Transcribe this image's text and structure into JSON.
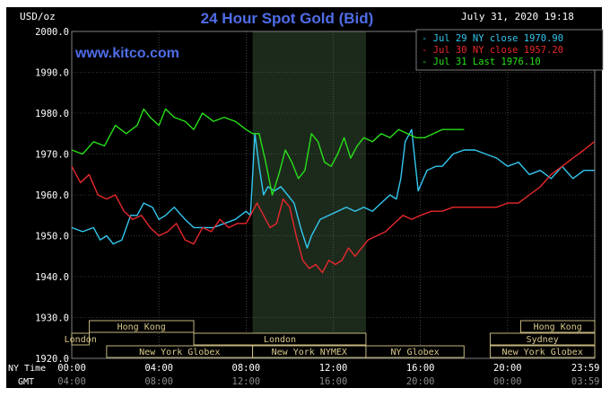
{
  "chart_data": {
    "type": "line",
    "title": "24 Hour Spot Gold (Bid)",
    "date": "July 31, 2020 19:18",
    "watermark": "www.kitco.com",
    "unit_label": "USD/oz",
    "ylim": [
      1920,
      2000
    ],
    "yticks": [
      "2000.0",
      "1990.0",
      "1980.0",
      "1970.0",
      "1960.0",
      "1950.0",
      "1940.0",
      "1930.0",
      "1920.0"
    ],
    "ytick_values": [
      2000,
      1990,
      1980,
      1970,
      1960,
      1950,
      1940,
      1930,
      1920
    ],
    "xlim_hours": [
      0,
      24
    ],
    "row_labels": {
      "ny": "NY Time",
      "gmt": "GMT"
    },
    "ny_ticks": [
      "00:00",
      "04:00",
      "08:00",
      "12:00",
      "16:00",
      "20:00",
      "23:59"
    ],
    "gmt_ticks": [
      "04:00",
      "08:00",
      "12:00",
      "16:00",
      "20:00",
      "00:00",
      "03:59"
    ],
    "tick_hours": [
      0,
      4,
      8,
      12,
      16,
      20,
      23.98
    ],
    "highlight_hours": [
      8.3,
      13.5
    ],
    "legend_position": "top-right",
    "sessions": [
      {
        "label": "Hong Kong",
        "row": 0,
        "start": 0.8,
        "end": 5.6
      },
      {
        "label": "Hong Kong",
        "row": 0,
        "start": 20.6,
        "end": 24
      },
      {
        "label": "London",
        "row": 1,
        "start": 0,
        "end": 0.8
      },
      {
        "label": "London",
        "row": 1,
        "start": 5.6,
        "end": 13.5
      },
      {
        "label": "Sydney",
        "row": 1,
        "start": 19.2,
        "end": 24
      },
      {
        "label": "New York Globex",
        "row": 2,
        "start": 1.6,
        "end": 8.3
      },
      {
        "label": "New York NYMEX",
        "row": 2,
        "start": 8.3,
        "end": 13.5
      },
      {
        "label": "NY Globex",
        "row": 2,
        "start": 13.5,
        "end": 18
      },
      {
        "label": "New York Globex",
        "row": 2,
        "start": 19.2,
        "end": 24
      }
    ],
    "series": [
      {
        "name": "Jul 29 NY close 1970.90",
        "color": "#33c8f0",
        "x": [
          0,
          0.5,
          1,
          1.3,
          1.6,
          1.9,
          2.3,
          2.7,
          3.0,
          3.3,
          3.7,
          4.0,
          4.3,
          4.7,
          5.2,
          5.6,
          6.0,
          6.5,
          7.0,
          7.5,
          8.0,
          8.2,
          8.4,
          8.6,
          8.8,
          9.0,
          9.3,
          9.6,
          9.9,
          10.2,
          10.5,
          10.8,
          11.0,
          11.4,
          11.8,
          12.2,
          12.6,
          13.0,
          13.4,
          13.8,
          14.2,
          14.6,
          14.9,
          15.1,
          15.3,
          15.6,
          15.9,
          16.3,
          16.7,
          17.0,
          17.5,
          18.0,
          18.5,
          19.0,
          19.5,
          20.0,
          20.5,
          21.0,
          21.5,
          22.0,
          22.5,
          23.0,
          23.5,
          23.98
        ],
        "y": [
          1952,
          1951,
          1952,
          1949,
          1950,
          1948,
          1949,
          1955,
          1955,
          1958,
          1957,
          1954,
          1955,
          1957,
          1954,
          1952,
          1952,
          1952,
          1953,
          1954,
          1956,
          1955,
          1975,
          1967,
          1960,
          1962,
          1961,
          1962,
          1960,
          1958,
          1952,
          1947,
          1950,
          1954,
          1955,
          1956,
          1957,
          1956,
          1957,
          1956,
          1958,
          1960,
          1959,
          1964,
          1973,
          1976,
          1961,
          1966,
          1967,
          1967,
          1970,
          1971,
          1971,
          1970,
          1969,
          1967,
          1968,
          1965,
          1966,
          1964,
          1967,
          1964,
          1966,
          1966
        ]
      },
      {
        "name": "Jul 30 NY close 1957.20",
        "color": "#e8282c",
        "x": [
          0,
          0.4,
          0.8,
          1.2,
          1.6,
          2.0,
          2.4,
          2.8,
          3.2,
          3.6,
          4.0,
          4.4,
          4.8,
          5.2,
          5.6,
          6.0,
          6.4,
          6.8,
          7.2,
          7.6,
          8.0,
          8.2,
          8.5,
          8.8,
          9.1,
          9.4,
          9.7,
          10.0,
          10.3,
          10.6,
          10.9,
          11.2,
          11.5,
          11.8,
          12.1,
          12.4,
          12.7,
          13.0,
          13.3,
          13.6,
          14.0,
          14.4,
          14.8,
          15.2,
          15.6,
          16.0,
          16.5,
          17.0,
          17.5,
          18.0,
          18.5,
          19.0,
          19.5,
          20.0,
          20.5,
          21.0,
          21.5,
          22.0,
          22.5,
          23.0,
          23.5,
          23.98
        ],
        "y": [
          1967,
          1963,
          1965,
          1960,
          1959,
          1960,
          1956,
          1954,
          1955,
          1952,
          1950,
          1951,
          1953,
          1949,
          1948,
          1952,
          1951,
          1954,
          1952,
          1953,
          1953,
          1955,
          1958,
          1955,
          1952,
          1953,
          1959,
          1957,
          1950,
          1944,
          1942,
          1943,
          1941,
          1944,
          1943,
          1944,
          1947,
          1945,
          1947,
          1949,
          1950,
          1951,
          1953,
          1955,
          1954,
          1955,
          1956,
          1956,
          1957,
          1957,
          1957,
          1957,
          1957,
          1958,
          1958,
          1960,
          1962,
          1965,
          1967,
          1969,
          1971,
          1973
        ]
      },
      {
        "name": "Jul 31 Last 1976.10",
        "color": "#28e018",
        "x": [
          0,
          0.5,
          1,
          1.5,
          2.0,
          2.5,
          3.0,
          3.3,
          3.6,
          4.0,
          4.3,
          4.7,
          5.2,
          5.6,
          6.0,
          6.5,
          7.0,
          7.5,
          8.0,
          8.3,
          8.6,
          8.9,
          9.2,
          9.5,
          9.8,
          10.1,
          10.4,
          10.7,
          11.0,
          11.3,
          11.6,
          11.9,
          12.2,
          12.5,
          12.8,
          13.1,
          13.4,
          13.8,
          14.2,
          14.6,
          15.0,
          15.4,
          15.8,
          16.2,
          16.6,
          17.0,
          17.5,
          18.0
        ],
        "y": [
          1971,
          1970,
          1973,
          1972,
          1977,
          1975,
          1977,
          1981,
          1979,
          1977,
          1981,
          1979,
          1978,
          1976,
          1980,
          1978,
          1979,
          1978,
          1976,
          1975,
          1975,
          1968,
          1960,
          1965,
          1971,
          1968,
          1964,
          1966,
          1975,
          1973,
          1968,
          1967,
          1970,
          1974,
          1969,
          1972,
          1974,
          1973,
          1975,
          1974,
          1976,
          1975,
          1974,
          1974,
          1975,
          1976,
          1976,
          1976
        ]
      }
    ]
  }
}
